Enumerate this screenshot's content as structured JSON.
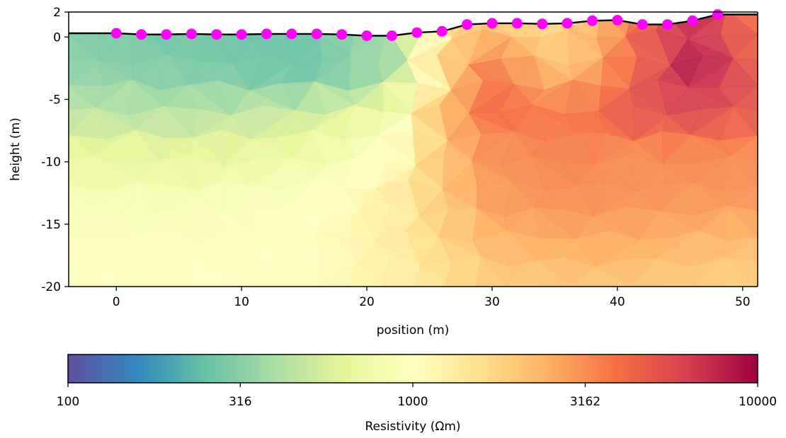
{
  "chart_data": [
    {
      "type": "heatmap",
      "title": "",
      "xlabel": "position (m)",
      "ylabel": "height (m)",
      "xlim": [
        -3.8,
        51.2
      ],
      "ylim": [
        -20,
        2
      ],
      "x_ticks": [
        0,
        10,
        20,
        30,
        40,
        50
      ],
      "x_tick_labels": [
        "0",
        "10",
        "20",
        "30",
        "40",
        "50"
      ],
      "y_ticks": [
        2,
        0,
        -5,
        -10,
        -15,
        -20
      ],
      "y_tick_labels": [
        "2",
        "0",
        "-5",
        "-10",
        "-15",
        "-20"
      ],
      "grid": false,
      "colormap": "Spectral_r",
      "log_scale": true,
      "surface_x": [
        -3.8,
        0,
        2,
        4,
        6,
        8,
        10,
        12,
        14,
        16,
        18,
        20,
        22,
        24,
        26,
        28,
        30,
        32,
        34,
        36,
        38,
        40,
        42,
        44,
        46,
        48,
        51.2
      ],
      "surface_y": [
        0.3,
        0.3,
        0.2,
        0.2,
        0.25,
        0.2,
        0.2,
        0.25,
        0.25,
        0.25,
        0.2,
        0.1,
        0.1,
        0.35,
        0.45,
        1.0,
        1.1,
        1.1,
        1.05,
        1.1,
        1.3,
        1.35,
        1.0,
        1.0,
        1.3,
        1.8,
        1.8
      ],
      "electrodes": {
        "x": [
          0,
          2,
          4,
          6,
          8,
          10,
          12,
          14,
          16,
          18,
          20,
          22,
          24,
          26,
          28,
          30,
          32,
          34,
          36,
          38,
          40,
          42,
          44,
          46,
          48
        ],
        "y": [
          0.3,
          0.2,
          0.2,
          0.25,
          0.2,
          0.2,
          0.25,
          0.25,
          0.25,
          0.2,
          0.1,
          0.1,
          0.35,
          0.45,
          1.0,
          1.1,
          1.1,
          1.05,
          1.1,
          1.3,
          1.35,
          1.0,
          1.0,
          1.3,
          1.8
        ],
        "color": "#ff00ff"
      },
      "resistivity_grid_ohm_m": {
        "x": [
          -3.8,
          5,
          15,
          22,
          26,
          30,
          36,
          41,
          46,
          51.2
        ],
        "y": [
          2,
          -3,
          -6,
          -9,
          -13,
          -17,
          -20
        ],
        "values": [
          [
            280,
            240,
            250,
            380,
            1700,
            1800,
            1500,
            3500,
            8000,
            3500
          ],
          [
            330,
            300,
            260,
            380,
            1800,
            3800,
            2200,
            4200,
            8500,
            4800
          ],
          [
            450,
            420,
            500,
            750,
            2300,
            4200,
            3800,
            5200,
            6000,
            5000
          ],
          [
            650,
            620,
            700,
            1000,
            2100,
            3200,
            3600,
            3300,
            3500,
            3300
          ],
          [
            850,
            850,
            950,
            1300,
            2000,
            2900,
            3200,
            3100,
            3000,
            3000
          ],
          [
            970,
            950,
            1000,
            1300,
            1700,
            2300,
            2500,
            2500,
            2300,
            2200
          ],
          [
            1000,
            1000,
            1050,
            1250,
            1500,
            1900,
            2000,
            2000,
            1900,
            1800
          ]
        ]
      }
    },
    {
      "type": "colorbar",
      "xlabel": "Resistivity (Ωm)",
      "range": [
        100,
        10000
      ],
      "log_scale": true,
      "ticks": [
        100,
        316,
        1000,
        3162,
        10000
      ],
      "tick_labels": [
        "100",
        "316",
        "1000",
        "3162",
        "10000"
      ]
    }
  ],
  "colors": {
    "electrode": "#ff00ff",
    "surface_line": "#000000",
    "axis": "#000000",
    "colormap_stops": [
      "#5e4fa2",
      "#3288bd",
      "#66c2a5",
      "#abdda4",
      "#e6f598",
      "#ffffbf",
      "#fee08b",
      "#fdae61",
      "#f46d43",
      "#d53e4f",
      "#9e0142"
    ]
  }
}
